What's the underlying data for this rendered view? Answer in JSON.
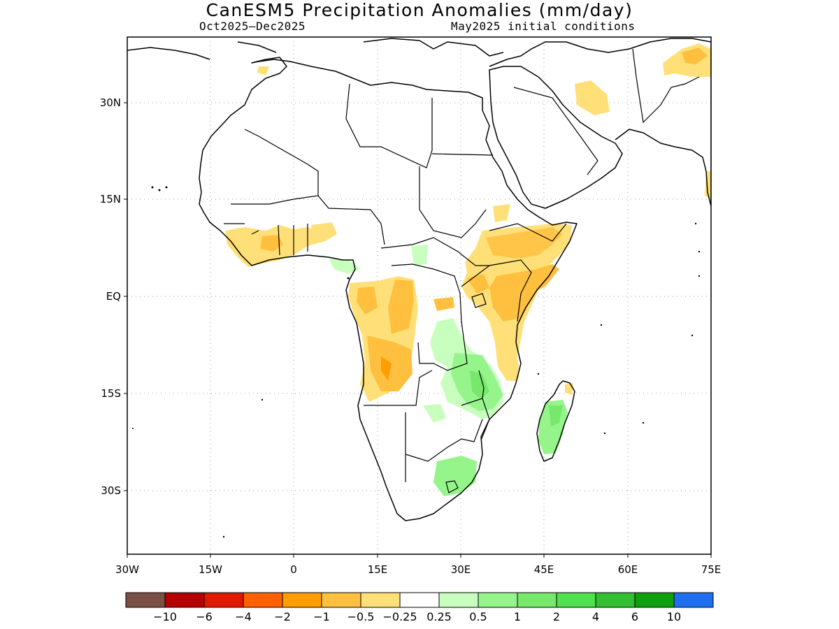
{
  "title": "CanESM5 Precipitation Anomalies (mm/day)",
  "period": "Oct2025–Dec2025",
  "initial_conditions": "May2025 initial conditions",
  "map": {
    "region": "Africa",
    "lat_labels": [
      "30N",
      "15N",
      "EQ",
      "15S",
      "30S"
    ],
    "lon_labels": [
      "30W",
      "15W",
      "0",
      "15E",
      "30E",
      "45E",
      "60E",
      "75E"
    ],
    "gridlines": "dotted",
    "anomaly_regions": [
      {
        "area": "West Africa coast",
        "category": "-0.5 to -0.25"
      },
      {
        "area": "Gabon / Congo",
        "category": "-1 to -0.5"
      },
      {
        "area": "Angola",
        "category": "-1 to -0.5"
      },
      {
        "area": "Ethiopia / Somalia / Kenya",
        "category": "-1 to -0.5"
      },
      {
        "area": "Tanzania / Zambia / Malawi",
        "category": "0.5 to 1"
      },
      {
        "area": "Madagascar",
        "category": "0.5 to 1"
      },
      {
        "area": "South Africa east",
        "category": "0.25 to 0.5"
      },
      {
        "area": "Arabia / Pakistan",
        "category": "-0.5 to -0.25"
      }
    ]
  },
  "colorbar": {
    "colors": [
      "#7b5044",
      "#b50000",
      "#df1a00",
      "#ff6000",
      "#ff9e00",
      "#ffbf3f",
      "#ffe078",
      "#ffffff",
      "#c8ffbe",
      "#95f58b",
      "#78e86c",
      "#50e050",
      "#32c032",
      "#0fa00f",
      "#1f6ff0"
    ],
    "labels": [
      "-10",
      "-6",
      "-4",
      "-2",
      "-1",
      "-0.5",
      "-0.25",
      "0.25",
      "0.5",
      "1",
      "2",
      "4",
      "6",
      "10"
    ]
  }
}
